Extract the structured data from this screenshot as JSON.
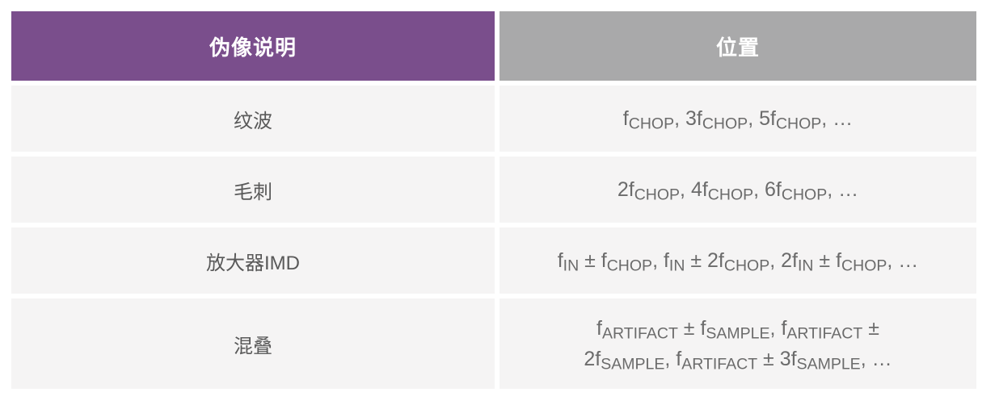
{
  "table": {
    "header": {
      "description_label": "伪像说明",
      "location_label": "位置"
    },
    "rows": [
      {
        "description": "纹波",
        "location": [
          {
            "t": "f"
          },
          {
            "sub": "CHOP"
          },
          {
            "t": ", 3f"
          },
          {
            "sub": "CHOP"
          },
          {
            "t": ", 5f"
          },
          {
            "sub": "CHOP"
          },
          {
            "t": ", …"
          }
        ]
      },
      {
        "description": "毛刺",
        "location": [
          {
            "t": "2f"
          },
          {
            "sub": "CHOP"
          },
          {
            "t": ", 4f"
          },
          {
            "sub": "CHOP"
          },
          {
            "t": ", 6f"
          },
          {
            "sub": "CHOP"
          },
          {
            "t": ", …"
          }
        ]
      },
      {
        "description": "放大器IMD",
        "location": [
          {
            "t": "f"
          },
          {
            "sub": "IN"
          },
          {
            "t": " ± f"
          },
          {
            "sub": "CHOP"
          },
          {
            "t": ", f"
          },
          {
            "sub": "IN"
          },
          {
            "t": " ± 2f"
          },
          {
            "sub": "CHOP"
          },
          {
            "t": ", 2f"
          },
          {
            "sub": "IN"
          },
          {
            "t": " ± f"
          },
          {
            "sub": "CHOP"
          },
          {
            "t": ", …"
          }
        ]
      },
      {
        "description": "混叠",
        "location": [
          {
            "t": "f"
          },
          {
            "sub": "ARTIFACT"
          },
          {
            "t": " ± f"
          },
          {
            "sub": "SAMPLE"
          },
          {
            "t": ", f"
          },
          {
            "sub": "ARTIFACT"
          },
          {
            "t": " ±"
          },
          {
            "br": true
          },
          {
            "t": "2f"
          },
          {
            "sub": "SAMPLE"
          },
          {
            "t": ", f"
          },
          {
            "sub": "ARTIFACT"
          },
          {
            "t": " ± 3f"
          },
          {
            "sub": "SAMPLE"
          },
          {
            "t": ", …"
          }
        ]
      }
    ]
  },
  "colors": {
    "header_description_bg": "#7a4e8c",
    "header_location_bg": "#a9a9aa",
    "header_text": "#ffffff",
    "row_bg": "#f5f4f4",
    "description_text": "#595959",
    "location_text": "#6b6b6b",
    "page_bg": "#ffffff"
  }
}
